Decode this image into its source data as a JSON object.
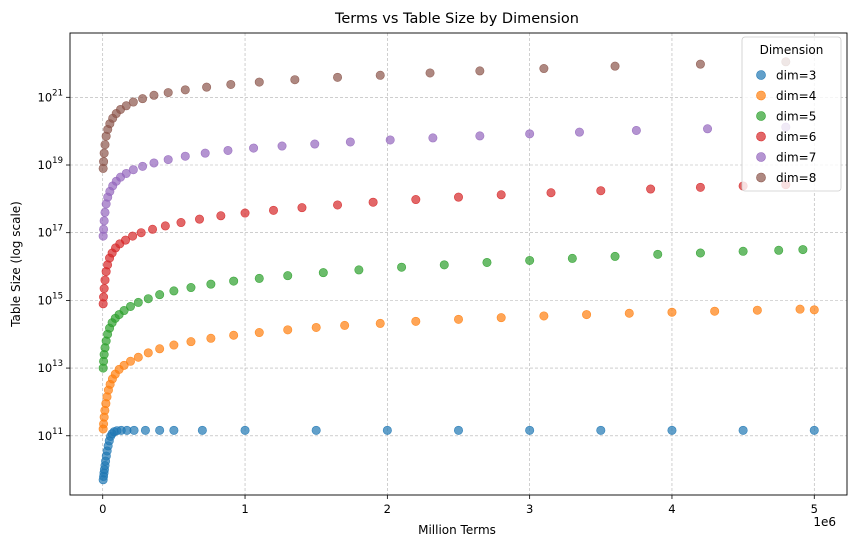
{
  "chart_data": {
    "type": "scatter",
    "title": "Terms vs Table Size by Dimension",
    "xlabel": "Million Terms",
    "ylabel": "Table Size (log scale)",
    "x_offset_label": "1e6",
    "xlim": [
      -230000,
      5230000
    ],
    "ylim_log10": [
      9.25,
      22.9
    ],
    "yscale": "log",
    "grid": true,
    "legend": {
      "title": "Dimension",
      "placement": "top-right"
    },
    "x_ticks": [
      {
        "value": 0,
        "label": "0"
      },
      {
        "value": 1000000,
        "label": "1"
      },
      {
        "value": 2000000,
        "label": "2"
      },
      {
        "value": 3000000,
        "label": "3"
      },
      {
        "value": 4000000,
        "label": "4"
      },
      {
        "value": 5000000,
        "label": "5"
      }
    ],
    "y_ticks": [
      {
        "exp": 11,
        "base": "10",
        "sup": "11"
      },
      {
        "exp": 13,
        "base": "10",
        "sup": "13"
      },
      {
        "exp": 15,
        "base": "10",
        "sup": "15"
      },
      {
        "exp": 17,
        "base": "10",
        "sup": "17"
      },
      {
        "exp": 19,
        "base": "10",
        "sup": "19"
      },
      {
        "exp": 21,
        "base": "10",
        "sup": "21"
      }
    ],
    "series": [
      {
        "name": "dim=3",
        "color": "#1f77b4",
        "points_log10": [
          [
            3000,
            9.7
          ],
          [
            6000,
            9.8
          ],
          [
            9000,
            9.9
          ],
          [
            12000,
            10.0
          ],
          [
            16000,
            10.12
          ],
          [
            20000,
            10.25
          ],
          [
            25000,
            10.4
          ],
          [
            31000,
            10.55
          ],
          [
            38000,
            10.7
          ],
          [
            46000,
            10.85
          ],
          [
            55000,
            10.98
          ],
          [
            66000,
            11.06
          ],
          [
            80000,
            11.12
          ],
          [
            100000,
            11.15
          ],
          [
            130000,
            11.16
          ],
          [
            170000,
            11.16
          ],
          [
            220000,
            11.16
          ],
          [
            300000,
            11.16
          ],
          [
            400000,
            11.16
          ],
          [
            500000,
            11.16
          ],
          [
            700000,
            11.16
          ],
          [
            1000000,
            11.16
          ],
          [
            1500000,
            11.16
          ],
          [
            2000000,
            11.16
          ],
          [
            2500000,
            11.16
          ],
          [
            3000000,
            11.16
          ],
          [
            3500000,
            11.16
          ],
          [
            4000000,
            11.16
          ],
          [
            4500000,
            11.16
          ],
          [
            5000000,
            11.16
          ]
        ]
      },
      {
        "name": "dim=4",
        "color": "#ff7f0e",
        "points_log10": [
          [
            3000,
            11.2
          ],
          [
            6000,
            11.35
          ],
          [
            10000,
            11.55
          ],
          [
            15000,
            11.75
          ],
          [
            22000,
            11.95
          ],
          [
            30000,
            12.15
          ],
          [
            40000,
            12.35
          ],
          [
            52000,
            12.52
          ],
          [
            68000,
            12.68
          ],
          [
            88000,
            12.82
          ],
          [
            115000,
            12.96
          ],
          [
            150000,
            13.08
          ],
          [
            195000,
            13.2
          ],
          [
            250000,
            13.32
          ],
          [
            320000,
            13.45
          ],
          [
            400000,
            13.57
          ],
          [
            500000,
            13.68
          ],
          [
            620000,
            13.78
          ],
          [
            760000,
            13.88
          ],
          [
            920000,
            13.97
          ],
          [
            1100000,
            14.05
          ],
          [
            1300000,
            14.13
          ],
          [
            1500000,
            14.2
          ],
          [
            1700000,
            14.26
          ],
          [
            1950000,
            14.32
          ],
          [
            2200000,
            14.38
          ],
          [
            2500000,
            14.44
          ],
          [
            2800000,
            14.49
          ],
          [
            3100000,
            14.54
          ],
          [
            3400000,
            14.58
          ],
          [
            3700000,
            14.62
          ],
          [
            4000000,
            14.65
          ],
          [
            4300000,
            14.68
          ],
          [
            4600000,
            14.71
          ],
          [
            4900000,
            14.74
          ],
          [
            5000000,
            14.72
          ]
        ]
      },
      {
        "name": "dim=5",
        "color": "#2ca02c",
        "points_log10": [
          [
            3000,
            13.0
          ],
          [
            6000,
            13.2
          ],
          [
            10000,
            13.4
          ],
          [
            16000,
            13.6
          ],
          [
            24000,
            13.8
          ],
          [
            34000,
            14.0
          ],
          [
            48000,
            14.18
          ],
          [
            66000,
            14.34
          ],
          [
            88000,
            14.47
          ],
          [
            115000,
            14.58
          ],
          [
            150000,
            14.7
          ],
          [
            195000,
            14.82
          ],
          [
            250000,
            14.94
          ],
          [
            320000,
            15.05
          ],
          [
            400000,
            15.17
          ],
          [
            500000,
            15.28
          ],
          [
            620000,
            15.38
          ],
          [
            760000,
            15.48
          ],
          [
            920000,
            15.57
          ],
          [
            1100000,
            15.65
          ],
          [
            1300000,
            15.73
          ],
          [
            1550000,
            15.82
          ],
          [
            1800000,
            15.9
          ],
          [
            2100000,
            15.98
          ],
          [
            2400000,
            16.05
          ],
          [
            2700000,
            16.12
          ],
          [
            3000000,
            16.18
          ],
          [
            3300000,
            16.24
          ],
          [
            3600000,
            16.3
          ],
          [
            3900000,
            16.36
          ],
          [
            4200000,
            16.4
          ],
          [
            4500000,
            16.45
          ],
          [
            4750000,
            16.48
          ],
          [
            4920000,
            16.5
          ]
        ]
      },
      {
        "name": "dim=6",
        "color": "#d62728",
        "points_log10": [
          [
            3000,
            14.9
          ],
          [
            6000,
            15.1
          ],
          [
            10000,
            15.35
          ],
          [
            16000,
            15.6
          ],
          [
            24000,
            15.85
          ],
          [
            34000,
            16.05
          ],
          [
            48000,
            16.25
          ],
          [
            66000,
            16.4
          ],
          [
            90000,
            16.55
          ],
          [
            120000,
            16.67
          ],
          [
            160000,
            16.78
          ],
          [
            210000,
            16.9
          ],
          [
            270000,
            17.0
          ],
          [
            350000,
            17.1
          ],
          [
            440000,
            17.2
          ],
          [
            550000,
            17.3
          ],
          [
            680000,
            17.4
          ],
          [
            830000,
            17.5
          ],
          [
            1000000,
            17.58
          ],
          [
            1200000,
            17.66
          ],
          [
            1400000,
            17.74
          ],
          [
            1650000,
            17.82
          ],
          [
            1900000,
            17.9
          ],
          [
            2200000,
            17.98
          ],
          [
            2500000,
            18.05
          ],
          [
            2800000,
            18.12
          ],
          [
            3150000,
            18.18
          ],
          [
            3500000,
            18.24
          ],
          [
            3850000,
            18.29
          ],
          [
            4200000,
            18.34
          ],
          [
            4500000,
            18.38
          ],
          [
            4800000,
            18.42
          ]
        ]
      },
      {
        "name": "dim=7",
        "color": "#9467bd",
        "points_log10": [
          [
            3000,
            16.9
          ],
          [
            6000,
            17.1
          ],
          [
            10000,
            17.35
          ],
          [
            16000,
            17.6
          ],
          [
            24000,
            17.85
          ],
          [
            35000,
            18.05
          ],
          [
            50000,
            18.22
          ],
          [
            70000,
            18.38
          ],
          [
            95000,
            18.52
          ],
          [
            125000,
            18.64
          ],
          [
            165000,
            18.75
          ],
          [
            215000,
            18.86
          ],
          [
            280000,
            18.96
          ],
          [
            360000,
            19.06
          ],
          [
            460000,
            19.16
          ],
          [
            580000,
            19.26
          ],
          [
            720000,
            19.35
          ],
          [
            880000,
            19.43
          ],
          [
            1060000,
            19.5
          ],
          [
            1260000,
            19.56
          ],
          [
            1490000,
            19.62
          ],
          [
            1740000,
            19.68
          ],
          [
            2020000,
            19.74
          ],
          [
            2320000,
            19.8
          ],
          [
            2650000,
            19.86
          ],
          [
            3000000,
            19.92
          ],
          [
            3350000,
            19.97
          ],
          [
            3750000,
            20.02
          ],
          [
            4250000,
            20.07
          ],
          [
            4800000,
            20.12
          ]
        ]
      },
      {
        "name": "dim=8",
        "color": "#8c564b",
        "points_log10": [
          [
            3000,
            18.9
          ],
          [
            6000,
            19.1
          ],
          [
            10000,
            19.35
          ],
          [
            16000,
            19.6
          ],
          [
            24000,
            19.85
          ],
          [
            35000,
            20.05
          ],
          [
            50000,
            20.22
          ],
          [
            70000,
            20.38
          ],
          [
            95000,
            20.52
          ],
          [
            125000,
            20.64
          ],
          [
            165000,
            20.75
          ],
          [
            215000,
            20.86
          ],
          [
            280000,
            20.96
          ],
          [
            360000,
            21.06
          ],
          [
            460000,
            21.14
          ],
          [
            580000,
            21.22
          ],
          [
            730000,
            21.3
          ],
          [
            900000,
            21.38
          ],
          [
            1100000,
            21.45
          ],
          [
            1350000,
            21.52
          ],
          [
            1650000,
            21.59
          ],
          [
            1950000,
            21.65
          ],
          [
            2300000,
            21.72
          ],
          [
            2650000,
            21.78
          ],
          [
            3100000,
            21.85
          ],
          [
            3600000,
            21.92
          ],
          [
            4200000,
            21.98
          ],
          [
            4800000,
            22.05
          ]
        ]
      }
    ]
  }
}
